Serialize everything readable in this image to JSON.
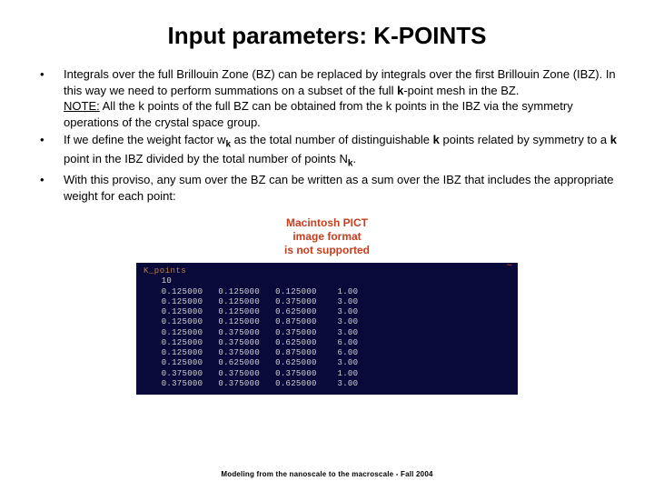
{
  "title": "Input parameters: K-POINTS",
  "bullets": [
    {
      "parts": [
        {
          "t": "Integrals over the full Brillouin Zone (BZ) can be replaced by integrals over the first Brillouin Zone (IBZ). In this way we need to perform summations on a subset of the full "
        },
        {
          "t": "k",
          "cls": "bold"
        },
        {
          "t": "-point mesh in the BZ."
        },
        {
          "br": true
        },
        {
          "t": "NOTE:",
          "cls": "underline"
        },
        {
          "t": " All the k points of the full BZ can be obtained from the k points in the IBZ via the symmetry operations of the crystal space group."
        }
      ]
    },
    {
      "parts": [
        {
          "t": "If we define the weight factor w"
        },
        {
          "t": "k",
          "cls": "bold sub"
        },
        {
          "t": " as the total number of distinguishable "
        },
        {
          "t": "k",
          "cls": "bold"
        },
        {
          "t": " points related by symmetry to a "
        },
        {
          "t": "k",
          "cls": "bold"
        },
        {
          "t": " point in the IBZ divided by the total number of points N"
        },
        {
          "t": "k",
          "cls": "bold sub"
        },
        {
          "t": "."
        }
      ]
    },
    {
      "parts": [
        {
          "t": "With this proviso, any sum over the BZ can be written as a sum over the IBZ that includes the appropriate weight for each point:"
        }
      ]
    }
  ],
  "pict": {
    "line1": "Macintosh PICT",
    "line2": "image format",
    "line3": "is not supported",
    "color": "#c04020"
  },
  "terminal": {
    "bg": "#0a0a3a",
    "header_color": "#c08040",
    "text_color": "#d0d0d0",
    "header": "K_points",
    "count": "10",
    "rows": [
      [
        "0.125000",
        "0.125000",
        "0.125000",
        "1.00"
      ],
      [
        "0.125000",
        "0.125000",
        "0.375000",
        "3.00"
      ],
      [
        "0.125000",
        "0.125000",
        "0.625000",
        "3.00"
      ],
      [
        "0.125000",
        "0.125000",
        "0.875000",
        "3.00"
      ],
      [
        "0.125000",
        "0.375000",
        "0.375000",
        "3.00"
      ],
      [
        "0.125000",
        "0.375000",
        "0.625000",
        "6.00"
      ],
      [
        "0.125000",
        "0.375000",
        "0.875000",
        "6.00"
      ],
      [
        "0.125000",
        "0.625000",
        "0.625000",
        "3.00"
      ],
      [
        "0.375000",
        "0.375000",
        "0.375000",
        "1.00"
      ],
      [
        "0.375000",
        "0.375000",
        "0.625000",
        "3.00"
      ]
    ],
    "tilde": "~"
  },
  "footer": "Modeling from the nanoscale to the macroscale - Fall 2004"
}
